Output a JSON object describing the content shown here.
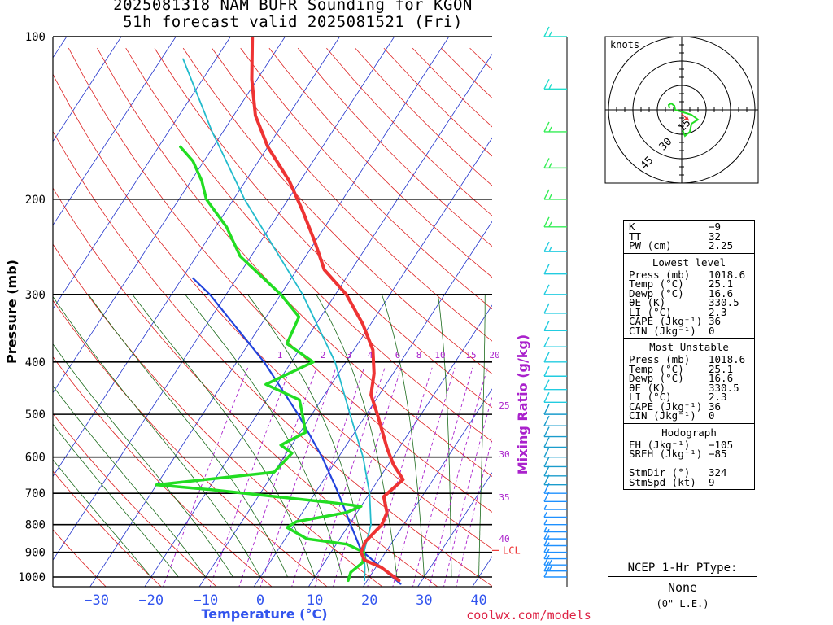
{
  "title": {
    "line1": "2025081318 NAM BUFR Sounding for KGON",
    "line2": "51h forecast valid 2025081521 (Fri)"
  },
  "chart_data": {
    "type": "line",
    "subtype": "skew-T log-P sounding",
    "xlabel": "Temperature (°C)",
    "ylabel": "Pressure (mb)",
    "xlim": [
      -37,
      42
    ],
    "ylim": [
      1030,
      100
    ],
    "y_scale": "log",
    "x_ticks": [
      -30,
      -20,
      -10,
      0,
      10,
      20,
      30,
      40
    ],
    "y_ticks": [
      1000,
      900,
      800,
      700,
      600,
      500,
      400,
      300,
      200,
      100
    ],
    "mixing_ratio_label": "Mixing Ratio (g/kg)",
    "mixing_ratio_values": [
      1,
      2,
      3,
      4,
      6,
      8,
      10,
      15,
      20,
      25,
      30,
      35,
      40
    ],
    "lcl_label": "LCL",
    "lcl_pressure": 893,
    "colors": {
      "temperature": "#ee3333",
      "dewpoint": "#22dd22",
      "wetbulb": "#22bbcc",
      "parcel": "#2244dd",
      "isotherm": "#2233cc",
      "dry_adiabat": "#dd2222",
      "moist_adiabat": "#1a6a1a",
      "mixing_ratio": "#aa22cc",
      "axis_text": "#3355ee"
    },
    "series": [
      {
        "name": "Temperature",
        "points": [
          [
            1015,
            25.8
          ],
          [
            960,
            21
          ],
          [
            930,
            17
          ],
          [
            900,
            15.5
          ],
          [
            860,
            15
          ],
          [
            800,
            16
          ],
          [
            760,
            15.5
          ],
          [
            710,
            13
          ],
          [
            660,
            14.5
          ],
          [
            620,
            11
          ],
          [
            580,
            8
          ],
          [
            500,
            2
          ],
          [
            460,
            -1.5
          ],
          [
            420,
            -3.5
          ],
          [
            380,
            -6.5
          ],
          [
            340,
            -11.5
          ],
          [
            300,
            -18
          ],
          [
            270,
            -25
          ],
          [
            240,
            -30
          ],
          [
            210,
            -36
          ],
          [
            185,
            -42
          ],
          [
            160,
            -50
          ],
          [
            140,
            -56
          ],
          [
            120,
            -61
          ],
          [
            100,
            -66
          ]
        ]
      },
      {
        "name": "Dewpoint",
        "points": [
          [
            1015,
            16.5
          ],
          [
            980,
            16
          ],
          [
            940,
            17
          ],
          [
            900,
            16
          ],
          [
            870,
            12
          ],
          [
            850,
            4
          ],
          [
            810,
            -1
          ],
          [
            790,
            0
          ],
          [
            760,
            8
          ],
          [
            740,
            10
          ],
          [
            730,
            5
          ],
          [
            690,
            -19
          ],
          [
            675,
            -30
          ],
          [
            640,
            -10
          ],
          [
            590,
            -9
          ],
          [
            570,
            -12
          ],
          [
            540,
            -9
          ],
          [
            510,
            -11
          ],
          [
            470,
            -14
          ],
          [
            440,
            -22
          ],
          [
            400,
            -16
          ],
          [
            370,
            -23
          ],
          [
            330,
            -24
          ],
          [
            300,
            -30
          ],
          [
            255,
            -42
          ],
          [
            225,
            -48
          ],
          [
            200,
            -55
          ],
          [
            185,
            -58
          ],
          [
            170,
            -62
          ],
          [
            160,
            -66
          ]
        ]
      },
      {
        "name": "Wet-bulb",
        "points": [
          [
            1015,
            19.5
          ],
          [
            960,
            18
          ],
          [
            900,
            16
          ],
          [
            800,
            14
          ],
          [
            700,
            10
          ],
          [
            600,
            4.5
          ],
          [
            500,
            -3
          ],
          [
            400,
            -12
          ],
          [
            300,
            -26
          ],
          [
            200,
            -48
          ],
          [
            150,
            -62
          ],
          [
            110,
            -76
          ]
        ]
      },
      {
        "name": "Parcel",
        "points": [
          [
            1030,
            26.5
          ],
          [
            893,
            15.3
          ],
          [
            800,
            10.3
          ],
          [
            700,
            4.3
          ],
          [
            600,
            -3
          ],
          [
            500,
            -12.5
          ],
          [
            400,
            -25
          ],
          [
            300,
            -43
          ],
          [
            280,
            -48
          ]
        ]
      }
    ],
    "wind_barbs": [
      {
        "p": 1000,
        "speed": 12
      },
      {
        "p": 975,
        "speed": 15
      },
      {
        "p": 950,
        "speed": 15
      },
      {
        "p": 925,
        "speed": 12
      },
      {
        "p": 900,
        "speed": 10
      },
      {
        "p": 875,
        "speed": 8
      },
      {
        "p": 850,
        "speed": 8
      },
      {
        "p": 825,
        "speed": 7
      },
      {
        "p": 800,
        "speed": 6
      },
      {
        "p": 775,
        "speed": 6
      },
      {
        "p": 750,
        "speed": 7
      },
      {
        "p": 725,
        "speed": 8
      },
      {
        "p": 700,
        "speed": 8
      },
      {
        "p": 675,
        "speed": 10
      },
      {
        "p": 650,
        "speed": 12
      },
      {
        "p": 625,
        "speed": 12
      },
      {
        "p": 600,
        "speed": 12
      },
      {
        "p": 575,
        "speed": 12
      },
      {
        "p": 550,
        "speed": 12
      },
      {
        "p": 525,
        "speed": 12
      },
      {
        "p": 500,
        "speed": 12
      },
      {
        "p": 475,
        "speed": 12
      },
      {
        "p": 450,
        "speed": 12
      },
      {
        "p": 425,
        "speed": 12
      },
      {
        "p": 400,
        "speed": 12
      },
      {
        "p": 375,
        "speed": 12
      },
      {
        "p": 350,
        "speed": 12
      },
      {
        "p": 325,
        "speed": 12
      },
      {
        "p": 300,
        "speed": 12
      },
      {
        "p": 275,
        "speed": 12
      },
      {
        "p": 250,
        "speed": 15
      },
      {
        "p": 225,
        "speed": 15
      },
      {
        "p": 200,
        "speed": 15
      },
      {
        "p": 175,
        "speed": 15
      },
      {
        "p": 150,
        "speed": 15
      },
      {
        "p": 125,
        "speed": 15
      },
      {
        "p": 100,
        "speed": 15
      }
    ],
    "hodograph": {
      "label": "knots",
      "ring_labels": [
        "15",
        "30",
        "45"
      ],
      "trace_color": "#22dd22",
      "storm_motion_color": "#ee3333"
    }
  },
  "indices": {
    "top": [
      {
        "label": "K",
        "value": "−9"
      },
      {
        "label": "TT",
        "value": "32"
      },
      {
        "label": "PW (cm)",
        "value": "2.25"
      }
    ],
    "lowest_title": "Lowest level",
    "lowest": [
      {
        "label": "Press (mb)",
        "value": "1018.6"
      },
      {
        "label": "Temp (°C)",
        "value": "25.1"
      },
      {
        "label": "Dewp (°C)",
        "value": "16.6"
      },
      {
        "label": "θE (K)",
        "value": "330.5"
      },
      {
        "label": "LI (°C)",
        "value": "2.3"
      },
      {
        "label": "CAPE (Jkg⁻¹)",
        "value": "36"
      },
      {
        "label": "CIN (Jkg⁻¹)",
        "value": "0"
      }
    ],
    "unstable_title": "Most Unstable",
    "unstable": [
      {
        "label": "Press (mb)",
        "value": "1018.6"
      },
      {
        "label": "Temp (°C)",
        "value": "25.1"
      },
      {
        "label": "Dewp (°C)",
        "value": "16.6"
      },
      {
        "label": "θE (K)",
        "value": "330.5"
      },
      {
        "label": "LI (°C)",
        "value": "2.3"
      },
      {
        "label": "CAPE (Jkg⁻¹)",
        "value": "36"
      },
      {
        "label": "CIN (Jkg⁻¹)",
        "value": "0"
      }
    ],
    "hodo_title": "Hodograph",
    "hodo": [
      {
        "label": "EH (Jkg⁻¹)",
        "value": "−105"
      },
      {
        "label": "SREH (Jkg⁻¹)",
        "value": "−85"
      },
      {
        "label": "",
        "value": ""
      },
      {
        "label": "StmDir (°)",
        "value": "324"
      },
      {
        "label": "StmSpd (kt)",
        "value": "9"
      }
    ]
  },
  "ptype": {
    "header": "NCEP 1-Hr PType:",
    "value": "None",
    "sub": "(0\" L.E.)"
  },
  "footer": {
    "credit": "coolwx.com/models"
  }
}
